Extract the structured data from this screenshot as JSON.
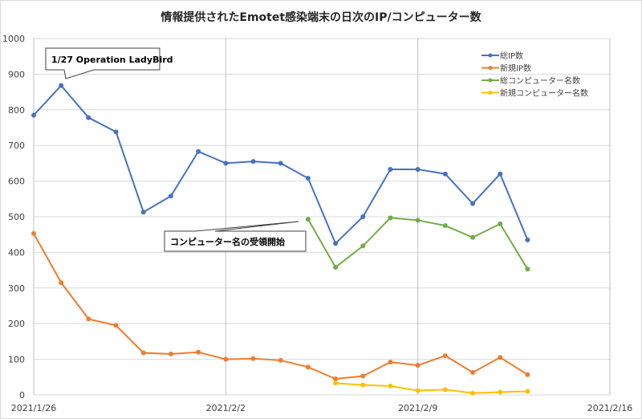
{
  "chart_data": {
    "type": "line",
    "title": "情報提供されたEmotet感染端末の日次のIP/コンピューター数",
    "xlabel": "",
    "ylabel": "",
    "ylim": [
      0,
      1000
    ],
    "yticks": [
      "0",
      "100",
      "200",
      "300",
      "400",
      "500",
      "600",
      "700",
      "800",
      "900",
      "1000"
    ],
    "xticks": [
      "2021/1/26",
      "2021/2/2",
      "2021/2/9",
      "2021/2/16"
    ],
    "x_start": "2021/1/26",
    "x_days_range": [
      0,
      21
    ],
    "grid": true,
    "legend_position": "top-right",
    "series": [
      {
        "name": "総IP数",
        "color": "#4472c4",
        "start_day": 0,
        "values": [
          785,
          868,
          778,
          738,
          513,
          558,
          683,
          650,
          655,
          650,
          608,
          425,
          500,
          633,
          633,
          620,
          537,
          620,
          435
        ]
      },
      {
        "name": "新規IP数",
        "color": "#ed7d31",
        "start_day": 0,
        "values": [
          453,
          315,
          213,
          195,
          118,
          115,
          120,
          100,
          102,
          97,
          78,
          45,
          53,
          92,
          83,
          110,
          63,
          105,
          57
        ]
      },
      {
        "name": "総コンピューター名数",
        "color": "#70ad47",
        "start_day": 10,
        "values": [
          493,
          358,
          418,
          497,
          490,
          475,
          442,
          480,
          353
        ]
      },
      {
        "name": "新規コンピューター名数",
        "color": "#ffc000",
        "start_day": 11,
        "values": [
          33,
          28,
          25,
          12,
          15,
          5,
          8,
          10
        ]
      }
    ],
    "annotations": [
      {
        "text": "1/27  Operation LadyBird",
        "day": 1,
        "value": 868
      },
      {
        "text": "コンピューター名の受領開始",
        "day": 10,
        "value": 493
      }
    ]
  }
}
